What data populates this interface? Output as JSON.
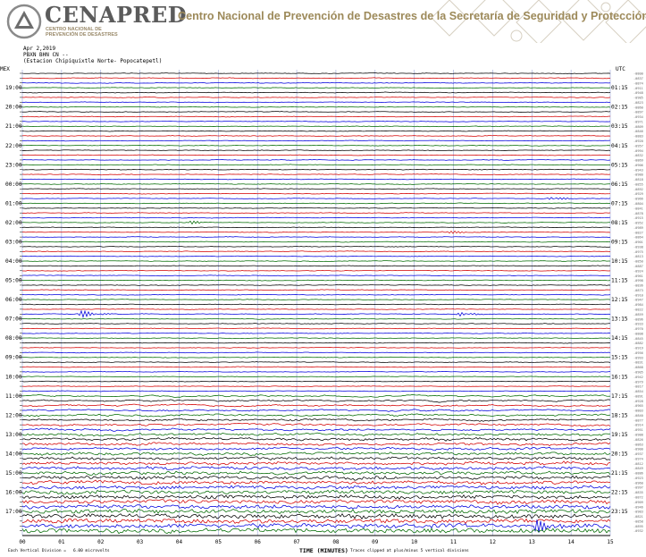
{
  "header": {
    "brand": "CENAPRED",
    "brand_sub_line1": "CENTRO NACIONAL DE",
    "brand_sub_line2": "PREVENCIÓN DE DESASTRES",
    "title": "Centro Nacional de Prevención de Desastres de la Secretaría de Seguridad y Protección Ciudadana"
  },
  "chart_data": {
    "type": "line",
    "date": "Apr 2,2019",
    "channel": "PBXN BHN CN --",
    "station": "(Estacion Chipiquixtle Norte- Popocatepetl)",
    "left_axis_label": "MEX",
    "right_axis_label": "UTC",
    "x_ticks": [
      "00",
      "01",
      "02",
      "03",
      "04",
      "05",
      "06",
      "07",
      "08",
      "09",
      "10",
      "11",
      "12",
      "13",
      "14",
      "15"
    ],
    "xlabel": "TIME (MINUTES)",
    "xlim": [
      0,
      15
    ],
    "left_hours": [
      "19:00",
      "20:00",
      "21:00",
      "22:00",
      "23:00",
      "00:00",
      "01:00",
      "02:00",
      "03:00",
      "04:00",
      "05:00",
      "06:00",
      "07:00",
      "08:00",
      "09:00",
      "10:00",
      "11:00",
      "12:00",
      "13:00",
      "14:00",
      "15:00",
      "16:00",
      "17:00"
    ],
    "right_hours": [
      "01:15",
      "02:15",
      "03:15",
      "04:15",
      "05:15",
      "06:15",
      "07:15",
      "08:15",
      "09:15",
      "10:15",
      "11:15",
      "12:15",
      "13:15",
      "14:15",
      "15:15",
      "16:15",
      "17:15",
      "18:15",
      "19:15",
      "20:15",
      "21:15",
      "22:15",
      "23:15"
    ],
    "trace_count": 96,
    "trace_colors": [
      "#000000",
      "#d40000",
      "#0000dd",
      "#006a00"
    ],
    "events": [
      {
        "trace": 26,
        "minute": 13.5,
        "amplitude": 3
      },
      {
        "trace": 31,
        "minute": 4.3,
        "amplitude": 2
      },
      {
        "trace": 33,
        "minute": 10.8,
        "amplitude": 3
      },
      {
        "trace": 50,
        "minute": 1.5,
        "amplitude": 5
      },
      {
        "trace": 50,
        "minute": 11.2,
        "amplitude": 3
      },
      {
        "trace": 94,
        "minute": 13.1,
        "amplitude": 12
      }
    ],
    "footer_left_1": "Each Vertical Division =",
    "footer_left_2": "6.00 microvolts",
    "footer_right": "Traces clipped at plus/minus 5 vertical divisions"
  },
  "colors": {
    "brand_gray": "#5b5b5b",
    "title_gold": "#9d8a5a",
    "grid_blue": "#9aa6d8"
  }
}
